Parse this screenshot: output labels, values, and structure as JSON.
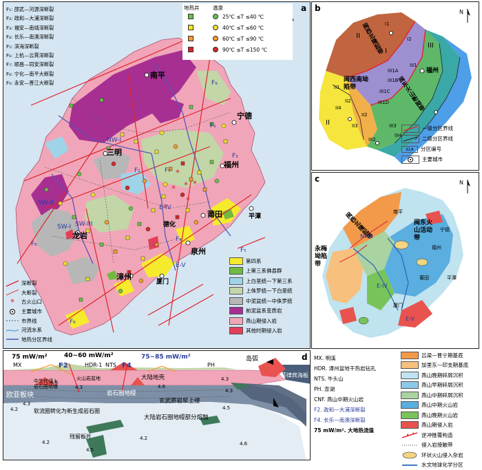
{
  "panel_a": {
    "label": "a",
    "north": "N",
    "faults": [
      "F₁: 邵武—河源深断裂",
      "F₂: 政和—大浦深断裂",
      "F₃: 福安—南靖深断裂",
      "F₄: 长乐—南澳深断裂",
      "F₅: 滨海深断裂",
      "F₆: 上杭—云霄深断裂",
      "F₇: 顺昌—同安深断裂",
      "F₈: 宁化—南平大断裂",
      "F₉: 永安—晋江大断裂"
    ],
    "symbol_header": {
      "well": "地热井",
      "spring": "温泉"
    },
    "temperature_classes": [
      {
        "label": "25℃ ≤T ≤40 ℃",
        "color": "#6cbf4c"
      },
      {
        "label": "40℃ ≤T ≤60 ℃",
        "color": "#f2e02a"
      },
      {
        "label": "60℃ ≤T ≤90 ℃",
        "color": "#f29a2e"
      },
      {
        "label": "90℃ ≤T ≤150 ℃",
        "color": "#d9262b"
      }
    ],
    "line_legend": [
      "深断裂",
      "大断裂",
      "古火山口",
      "主要城市",
      "市界线",
      "河流水系",
      "地热分区界线"
    ],
    "rock_legend": [
      {
        "label": "第四系",
        "color": "#f5ea2c"
      },
      {
        "label": "上第三系佛县群",
        "color": "#72b940"
      },
      {
        "label": "上白垩统—下第三系",
        "color": "#9fd4e8"
      },
      {
        "label": "上侏罗统—下白垩统",
        "color": "#c2d6a8"
      },
      {
        "label": "中泥盆统—中侏罗统",
        "color": "#b7b7b7"
      },
      {
        "label": "前泥盆系变质岩",
        "color": "#a72f92"
      },
      {
        "label": "燕山期侵入岩",
        "color": "#f0a6b8"
      },
      {
        "label": "其他时期侵入岩",
        "color": "#e43f5a"
      }
    ],
    "map_labels": {
      "nanping": "南平",
      "ningde": "宁德",
      "fuzhou": "福州",
      "sanming": "三明",
      "putian": "莆田",
      "dehua": "德化",
      "pingtan": "平潭",
      "quanzhou": "泉州",
      "longyan": "龙岩",
      "zhangzhou": "漳州",
      "xiamen": "厦门",
      "zone_nw1": "NW-I",
      "zone_sw2": "SW-II",
      "zone_sw1": "SW-I",
      "zone_sw3": "SW-III",
      "zone_e4": "E-IV",
      "zone_e5": "E-V",
      "f1": "F₁",
      "f2": "F₂",
      "f3": "F₃",
      "f4": "F₄",
      "f5": "F₅",
      "f6": "F₆",
      "f7": "F₇",
      "f8": "F₈",
      "f9": "F₉"
    }
  },
  "panel_b": {
    "label": "b",
    "north": "N",
    "zones": [
      "II",
      "I",
      "III",
      "II1",
      "II2",
      "II3",
      "II4",
      "III1",
      "III2",
      "III3",
      "III4",
      "III1A",
      "III1B",
      "III1C",
      "III1D",
      "II2",
      "I1",
      "I2"
    ],
    "names": {
      "fujian_w": "闽西北隆起带",
      "minxinan": "闽西南坳陷带",
      "mindong": "闽东火山断拗带",
      "fuzhou": "福州"
    },
    "legend": [
      "一级分区界线",
      "二级分区界线",
      "分区编号",
      "主要城市"
    ],
    "legend_code": "II1A"
  },
  "panel_c": {
    "label": "c",
    "north": "N",
    "names": {
      "nw": "闽西北隆起带",
      "yongmei": "永梅坳陷带",
      "mindong": "闽东火山活动带",
      "nw1": "NW-I",
      "e4": "E-IV",
      "e5": "E-V",
      "nanping": "南平",
      "ningde": "宁德",
      "fuzhou": "福州",
      "putian": "莆田",
      "pingtan": "平潭",
      "xiamen": "厦门"
    }
  },
  "panel_d": {
    "label": "d",
    "heat_flow_left": "75 mW/m²",
    "heat_flow_mid": "40~60 mW/m²",
    "heat_flow_right": "75~85 mW/m²",
    "site_mx": "MX",
    "site_hdr": "HDR-1",
    "site_nts": "NTS",
    "site_ph": "PH",
    "f2": "F2",
    "f4": "F4",
    "island_arc": "岛弧",
    "eurasia": "欧亚板块",
    "philippine": "菲律宾海板块",
    "cont_crust": "大陆地壳",
    "lith_mantle": "岩石圈地幔",
    "basalt": "玄武质岩浆上侵",
    "meso_granite": "中生代侵入岩石圈地幔",
    "volcano_basin": "火山岩盆地",
    "soft_flow": "软流圈转化为新生成岩石圈",
    "melting": "大陆岩石圈地幔部分熔融",
    "remnant": "残留板片",
    "depth_labels": [
      "4.6",
      "4.3",
      "4.2",
      "4.3",
      "4.6",
      "4.5",
      "4.3",
      "4.3",
      "4.2",
      "4.6",
      "4.2",
      "4.5"
    ]
  },
  "legend_d": {
    "abbrevs": [
      "MX. 明溪",
      "HDR. 漳州盆地干热岩钻孔",
      "NTS. 牛头山",
      "PH. 澎湖",
      "CNF. 燕山中期火山岩",
      "F2. 政和—大浦深断裂",
      "F4. 长乐—南澳深断裂",
      "75 mW/m². 大地热流值"
    ],
    "items": [
      {
        "label": "吕梁—晋宁期基底",
        "color": "#f29a4a"
      },
      {
        "label": "加里东—印支期基底",
        "color": "#f8c07d"
      },
      {
        "label": "燕山晚期碎屑沉积",
        "color": "#bfe3ef"
      },
      {
        "label": "燕山早期碎屑沉积",
        "color": "#8cc8e8"
      },
      {
        "label": "燕山中期碎屑沉积",
        "color": "#a9d3a1"
      },
      {
        "label": "燕山中期火山岩",
        "color": "#5aaee0"
      },
      {
        "label": "燕山晚期火山岩",
        "color": "#78c35a"
      },
      {
        "label": "燕山期侵入岩",
        "color": "#e8534f"
      },
      {
        "label": "逆冲推覆构造",
        "color": "#e0323a"
      },
      {
        "label": "侵入岩接触带",
        "color": "#333333"
      },
      {
        "label": "环状火山侵入杂岩",
        "color": "#f2d580"
      },
      {
        "label": "水文地球化学分区",
        "color": "#2a64b5"
      }
    ]
  }
}
